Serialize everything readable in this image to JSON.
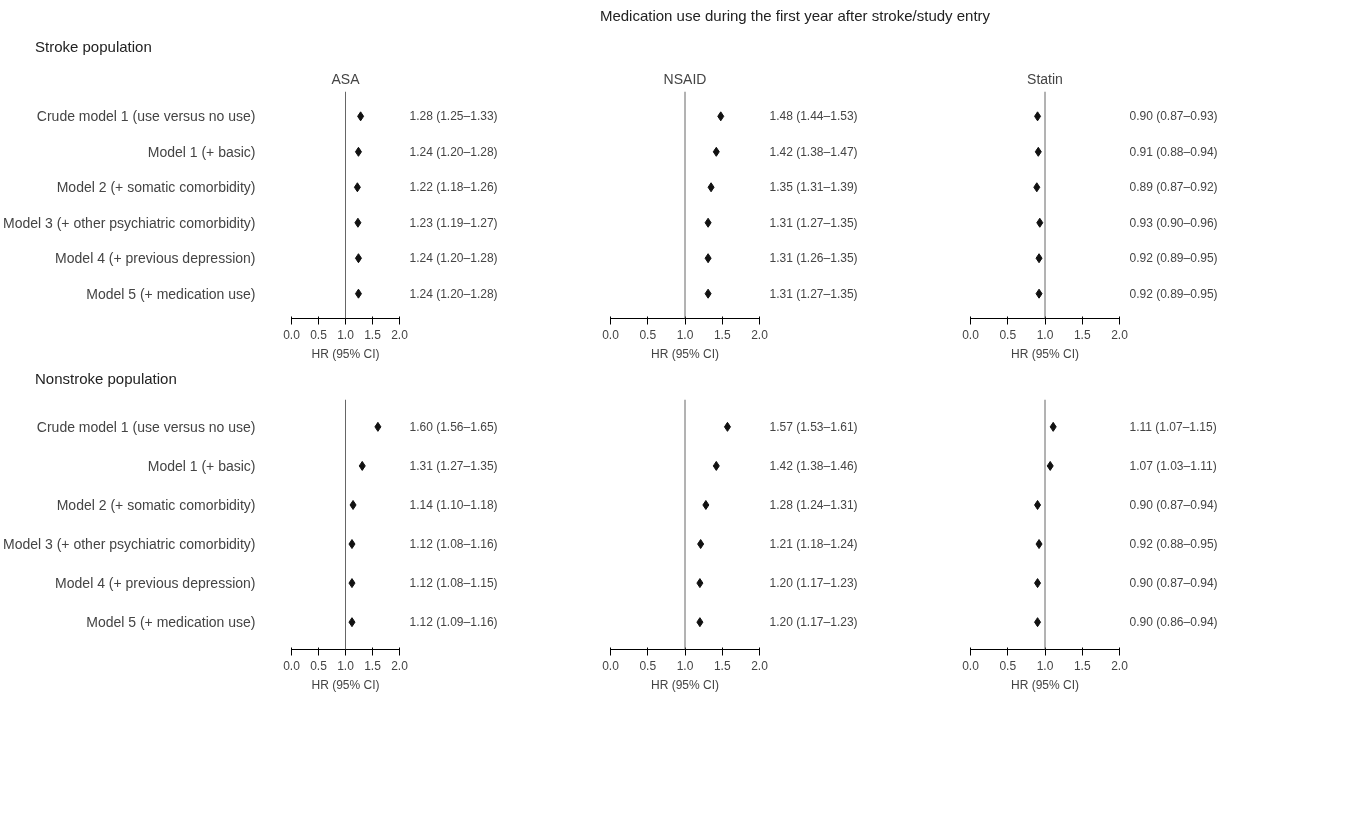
{
  "chart_data": [
    {
      "type": "scatter",
      "title": "ASA",
      "subtitle": "Stroke population",
      "annotations": [
        "Medication use during the first year after stroke/study entry"
      ],
      "orientation": "horizontal",
      "categories": [
        "Crude model 1 (use versus no use)",
        "Model 1 (+ basic)",
        "Model 2 (+ somatic comorbidity)",
        "Model 3 (+ other psychiatric comorbidity)",
        "Model 4 (+ previous depression)",
        "Model 5 (+ medication use)"
      ],
      "values": [
        1.28,
        1.24,
        1.22,
        1.23,
        1.24,
        1.24
      ],
      "value_labels": [
        "1.28 (1.25–1.33)",
        "1.24 (1.20–1.28)",
        "1.22 (1.18–1.26)",
        "1.23 (1.19–1.27)",
        "1.24 (1.20–1.28)",
        "1.24 (1.20–1.28)"
      ],
      "xlim": [
        0,
        2
      ],
      "xticks": [
        {
          "value": 0,
          "label": "0.0"
        },
        {
          "value": 0.5,
          "label": "0.5"
        },
        {
          "value": 1,
          "label": "1.0"
        },
        {
          "value": 1.5,
          "label": "1.5"
        },
        {
          "value": 2,
          "label": "2.0"
        }
      ],
      "xlabel": "HR (95% CI)",
      "ref_lines": [
        {
          "axis": "x",
          "value": 1
        }
      ],
      "marker": "diamond",
      "grid": false
    },
    {
      "type": "scatter",
      "title": "NSAID",
      "orientation": "horizontal",
      "categories": [
        null,
        null,
        null,
        null,
        null,
        null
      ],
      "values": [
        1.48,
        1.42,
        1.35,
        1.31,
        1.31,
        1.31
      ],
      "value_labels": [
        "1.48 (1.44–1.53)",
        "1.42 (1.38–1.47)",
        "1.35 (1.31–1.39)",
        "1.31 (1.27–1.35)",
        "1.31 (1.26–1.35)",
        "1.31 (1.27–1.35)"
      ],
      "xlim": [
        0,
        2
      ],
      "xticks": [
        {
          "value": 0,
          "label": "0.0"
        },
        {
          "value": 0.5,
          "label": "0.5"
        },
        {
          "value": 1,
          "label": "1.0"
        },
        {
          "value": 1.5,
          "label": "1.5"
        },
        {
          "value": 2,
          "label": "2.0"
        }
      ],
      "xlabel": "HR (95% CI)",
      "ref_lines": [
        {
          "axis": "x",
          "value": 1
        }
      ],
      "marker": "diamond",
      "grid": false
    },
    {
      "type": "scatter",
      "title": "Statin",
      "orientation": "horizontal",
      "categories": [
        null,
        null,
        null,
        null,
        null,
        null
      ],
      "values": [
        0.9,
        0.91,
        0.89,
        0.93,
        0.92,
        0.92
      ],
      "value_labels": [
        "0.90 (0.87–0.93)",
        "0.91 (0.88–0.94)",
        "0.89 (0.87–0.92)",
        "0.93 (0.90–0.96)",
        "0.92 (0.89–0.95)",
        "0.92 (0.89–0.95)"
      ],
      "xlim": [
        0,
        2
      ],
      "xticks": [
        {
          "value": 0,
          "label": "0.0"
        },
        {
          "value": 0.5,
          "label": "0.5"
        },
        {
          "value": 1,
          "label": "1.0"
        },
        {
          "value": 1.5,
          "label": "1.5"
        },
        {
          "value": 2,
          "label": "2.0"
        }
      ],
      "xlabel": "HR (95% CI)",
      "ref_lines": [
        {
          "axis": "x",
          "value": 1
        }
      ],
      "marker": "diamond",
      "grid": false
    },
    {
      "type": "scatter",
      "subtitle": "Nonstroke population",
      "orientation": "horizontal",
      "categories": [
        "Crude model 1 (use versus no use)",
        "Model 1 (+ basic)",
        "Model 2 (+ somatic comorbidity)",
        "Model 3 (+ other psychiatric comorbidity)",
        "Model 4 (+ previous depression)",
        "Model 5 (+ medication use)"
      ],
      "values": [
        1.6,
        1.31,
        1.14,
        1.12,
        1.12,
        1.12
      ],
      "value_labels": [
        "1.60 (1.56–1.65)",
        "1.31 (1.27–1.35)",
        "1.14 (1.10–1.18)",
        "1.12 (1.08–1.16)",
        "1.12 (1.08–1.15)",
        "1.12 (1.09–1.16)"
      ],
      "xlim": [
        0,
        2
      ],
      "xticks": [
        {
          "value": 0,
          "label": "0.0"
        },
        {
          "value": 0.5,
          "label": "0.5"
        },
        {
          "value": 1,
          "label": "1.0"
        },
        {
          "value": 1.5,
          "label": "1.5"
        },
        {
          "value": 2,
          "label": "2.0"
        }
      ],
      "xlabel": "HR (95% CI)",
      "ref_lines": [
        {
          "axis": "x",
          "value": 1
        }
      ],
      "marker": "diamond",
      "grid": false
    },
    {
      "type": "scatter",
      "orientation": "horizontal",
      "categories": [
        null,
        null,
        null,
        null,
        null,
        null
      ],
      "values": [
        1.57,
        1.42,
        1.28,
        1.21,
        1.2,
        1.2
      ],
      "value_labels": [
        "1.57 (1.53–1.61)",
        "1.42 (1.38–1.46)",
        "1.28 (1.24–1.31)",
        "1.21 (1.18–1.24)",
        "1.20 (1.17–1.23)",
        "1.20 (1.17–1.23)"
      ],
      "xlim": [
        0,
        2
      ],
      "xticks": [
        {
          "value": 0,
          "label": "0.0"
        },
        {
          "value": 0.5,
          "label": "0.5"
        },
        {
          "value": 1,
          "label": "1.0"
        },
        {
          "value": 1.5,
          "label": "1.5"
        },
        {
          "value": 2,
          "label": "2.0"
        }
      ],
      "xlabel": "HR (95% CI)",
      "ref_lines": [
        {
          "axis": "x",
          "value": 1
        }
      ],
      "marker": "diamond",
      "grid": false
    },
    {
      "type": "scatter",
      "orientation": "horizontal",
      "categories": [
        null,
        null,
        null,
        null,
        null,
        null
      ],
      "values": [
        1.11,
        1.07,
        0.9,
        0.92,
        0.9,
        0.9
      ],
      "value_labels": [
        "1.11 (1.07–1.15)",
        "1.07 (1.03–1.11)",
        "0.90 (0.87–0.94)",
        "0.92 (0.88–0.95)",
        "0.90 (0.87–0.94)",
        "0.90 (0.86–0.94)"
      ],
      "xlim": [
        0,
        2
      ],
      "xticks": [
        {
          "value": 0,
          "label": "0.0"
        },
        {
          "value": 0.5,
          "label": "0.5"
        },
        {
          "value": 1,
          "label": "1.0"
        },
        {
          "value": 1.5,
          "label": "1.5"
        },
        {
          "value": 2,
          "label": "2.0"
        }
      ],
      "xlabel": "HR (95% CI)",
      "ref_lines": [
        {
          "axis": "x",
          "value": 1
        }
      ],
      "marker": "diamond",
      "grid": false
    }
  ]
}
